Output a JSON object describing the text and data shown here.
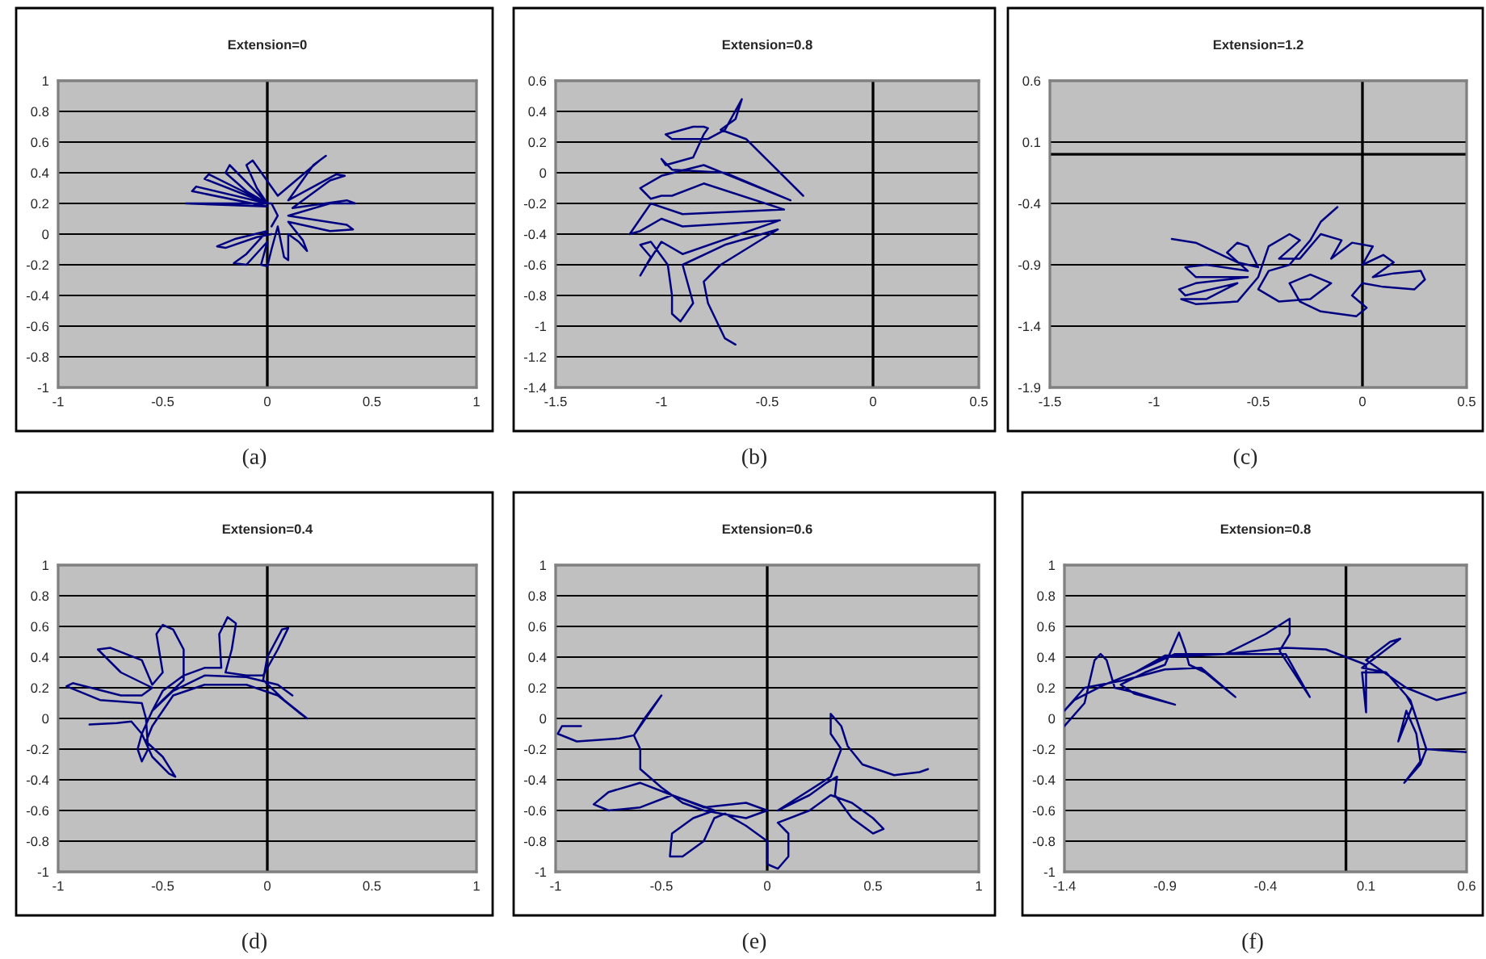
{
  "chart_data": [
    {
      "type": "line",
      "title": "Extension=0",
      "annotations": [
        "(a)"
      ],
      "xlim": [
        -1,
        1
      ],
      "ylim": [
        -1,
        1
      ],
      "xticks": [
        -1,
        -0.5,
        0,
        0.5,
        1
      ],
      "yticks": [
        -1,
        -0.8,
        -0.6,
        -0.4,
        -0.2,
        0,
        0.2,
        0.4,
        0.6,
        0.8,
        1
      ],
      "grid": "y",
      "ref_lines": [
        {
          "axis": "x",
          "value": 0
        }
      ],
      "series": [
        {
          "color": "#000080",
          "x": [
            0.02,
            -0.05,
            -0.2,
            -0.24,
            -0.15,
            0.0,
            -0.1,
            -0.16,
            -0.1,
            0.0,
            -0.03,
            0.0,
            0.02,
            0.05,
            0.08,
            0.1,
            0.1,
            0.15,
            0.19,
            0.17,
            0.1,
            0.3,
            0.41,
            0.38,
            0.1,
            0.3,
            0.42,
            0.38,
            0.12,
            0.3,
            0.37,
            0.33,
            0.1,
            0.22,
            0.28,
            0.25,
            0.05,
            -0.07,
            -0.1,
            -0.05,
            0.0,
            -0.18,
            -0.2,
            -0.1,
            0.0,
            -0.28,
            -0.3,
            0.0,
            -0.34,
            -0.36,
            0.0,
            -0.39,
            -0.36,
            0.02,
            0.05,
            0.02
          ],
          "values": [
            0.0,
            -0.02,
            -0.09,
            -0.08,
            -0.03,
            0.02,
            -0.13,
            -0.19,
            -0.2,
            -0.05,
            -0.2,
            -0.21,
            -0.1,
            0.05,
            -0.15,
            -0.17,
            0.0,
            -0.05,
            -0.11,
            -0.04,
            0.08,
            0.02,
            0.03,
            0.06,
            0.12,
            0.2,
            0.2,
            0.22,
            0.17,
            0.35,
            0.38,
            0.39,
            0.22,
            0.45,
            0.51,
            0.48,
            0.25,
            0.48,
            0.45,
            0.3,
            0.2,
            0.45,
            0.4,
            0.28,
            0.2,
            0.39,
            0.36,
            0.2,
            0.31,
            0.28,
            0.18,
            0.2,
            0.2,
            0.2,
            0.12,
            0.05
          ]
        }
      ]
    },
    {
      "type": "line",
      "title": "Extension=0.8",
      "annotations": [
        "(b)"
      ],
      "xlim": [
        -1.5,
        0.5
      ],
      "ylim": [
        -1.4,
        0.6
      ],
      "xticks": [
        -1.5,
        -1,
        -0.5,
        0,
        0.5
      ],
      "yticks": [
        -1.4,
        -1.2,
        -1,
        -0.8,
        -0.6,
        -0.4,
        -0.2,
        0,
        0.2,
        0.4,
        0.6
      ],
      "grid": "y",
      "ref_lines": [
        {
          "axis": "x",
          "value": 0
        }
      ],
      "series": [
        {
          "color": "#000080",
          "x": [
            -0.65,
            -0.7,
            -0.78,
            -0.8,
            -0.72,
            -0.45,
            -0.7,
            -0.9,
            -0.85,
            -0.91,
            -0.95,
            -0.95,
            -0.97,
            -1.05,
            -1.1,
            -1.05,
            -1.1,
            -1.07,
            -1.0,
            -0.9,
            -0.44,
            -0.9,
            -1.0,
            -1.1,
            -1.15,
            -1.1,
            -1.05,
            -0.9,
            -0.42,
            -0.8,
            -0.95,
            -1.0,
            -1.05,
            -1.1,
            -1.0,
            -0.8,
            -0.39,
            -0.7,
            -0.95,
            -1.0,
            -0.98,
            -0.85,
            -0.8,
            -0.78,
            -0.8,
            -0.85,
            -0.98,
            -0.95,
            -0.78,
            -0.7,
            -0.62,
            -0.65,
            -0.72,
            -0.6,
            -0.33
          ],
          "values": [
            -1.12,
            -1.08,
            -0.85,
            -0.71,
            -0.6,
            -0.37,
            -0.47,
            -0.6,
            -0.85,
            -0.97,
            -0.92,
            -0.8,
            -0.6,
            -0.45,
            -0.47,
            -0.55,
            -0.67,
            -0.6,
            -0.45,
            -0.53,
            -0.31,
            -0.35,
            -0.3,
            -0.38,
            -0.4,
            -0.3,
            -0.2,
            -0.27,
            -0.24,
            -0.07,
            -0.15,
            -0.15,
            -0.17,
            -0.1,
            -0.02,
            0.05,
            -0.18,
            0.0,
            0.02,
            0.09,
            0.05,
            0.1,
            0.25,
            0.29,
            0.3,
            0.3,
            0.25,
            0.22,
            0.22,
            0.28,
            0.48,
            0.35,
            0.28,
            0.22,
            -0.15
          ]
        }
      ]
    },
    {
      "type": "line",
      "title": "Extension=1.2",
      "annotations": [
        "(c)"
      ],
      "xlim": [
        -1.5,
        0.5
      ],
      "ylim": [
        -1.9,
        0.6
      ],
      "xticks": [
        -1.5,
        -1,
        -0.5,
        0,
        0.5
      ],
      "yticks": [
        -1.9,
        -1.4,
        -0.9,
        -0.4,
        0.1,
        0.6
      ],
      "grid": "y",
      "ref_lines": [
        {
          "axis": "x",
          "value": 0
        },
        {
          "axis": "y",
          "value": 0
        }
      ],
      "series": [
        {
          "color": "#000080",
          "x": [
            -0.915,
            -0.8,
            -0.7,
            -0.6,
            -0.5,
            -0.55,
            -0.6,
            -0.65,
            -0.55,
            -0.75,
            -0.85,
            -0.8,
            -0.55,
            -0.8,
            -0.88,
            -0.85,
            -0.6,
            -0.75,
            -0.87,
            -0.8,
            -0.6,
            -0.5,
            -0.45,
            -0.35,
            -0.3,
            -0.4,
            -0.3,
            -0.2,
            -0.1,
            -0.15,
            -0.05,
            0.05,
            0.0,
            0.1,
            0.15,
            0.05,
            0.15,
            0.28,
            0.3,
            0.25,
            0.1,
            0.0,
            -0.05,
            0.02,
            -0.03,
            -0.2,
            -0.3,
            -0.35,
            -0.25,
            -0.15,
            -0.25,
            -0.4,
            -0.5,
            -0.45,
            -0.35,
            -0.3,
            -0.25,
            -0.2,
            -0.12
          ],
          "values": [
            -0.69,
            -0.72,
            -0.8,
            -0.88,
            -0.92,
            -0.75,
            -0.72,
            -0.8,
            -0.95,
            -0.9,
            -0.92,
            -1.0,
            -1.0,
            -1.05,
            -1.1,
            -1.15,
            -1.05,
            -1.18,
            -1.18,
            -1.22,
            -1.2,
            -1.0,
            -0.75,
            -0.65,
            -0.7,
            -0.85,
            -0.85,
            -0.65,
            -0.7,
            -0.85,
            -0.72,
            -0.75,
            -0.9,
            -0.82,
            -0.88,
            -1.0,
            -0.97,
            -0.95,
            -1.02,
            -1.1,
            -1.08,
            -1.05,
            -1.15,
            -1.25,
            -1.32,
            -1.28,
            -1.2,
            -1.05,
            -0.98,
            -1.05,
            -1.18,
            -1.2,
            -1.1,
            -0.95,
            -0.9,
            -0.8,
            -0.7,
            -0.55,
            -0.43
          ]
        }
      ]
    },
    {
      "type": "line",
      "title": "Extension=0.4",
      "annotations": [
        "(d)"
      ],
      "xlim": [
        -1,
        1
      ],
      "ylim": [
        -1,
        1
      ],
      "xticks": [
        -1,
        -0.5,
        0,
        0.5,
        1
      ],
      "yticks": [
        -1,
        -0.8,
        -0.6,
        -0.4,
        -0.2,
        0,
        0.2,
        0.4,
        0.6,
        0.8,
        1
      ],
      "grid": "y",
      "ref_lines": [
        {
          "axis": "x",
          "value": 0
        }
      ],
      "series": [
        {
          "color": "#000080",
          "x": [
            -0.85,
            -0.72,
            -0.65,
            -0.6,
            -0.62,
            -0.6,
            -0.57,
            -0.58,
            -0.6,
            -0.8,
            -0.96,
            -0.93,
            -0.7,
            -0.6,
            -0.55,
            -0.7,
            -0.81,
            -0.75,
            -0.6,
            -0.55,
            -0.5,
            -0.53,
            -0.5,
            -0.45,
            -0.4,
            -0.4,
            -0.5,
            -0.55,
            -0.5,
            -0.4,
            -0.3,
            -0.22,
            -0.23,
            -0.19,
            -0.15,
            -0.17,
            -0.2,
            -0.1,
            -0.02,
            0.05,
            0.1,
            0.07,
            0.0,
            -0.02,
            0.08,
            0.19,
            0.15,
            0.05,
            -0.1,
            -0.3,
            -0.45,
            -0.55,
            -0.58,
            -0.5,
            -0.44,
            -0.47,
            -0.55,
            -0.6,
            -0.55,
            -0.45,
            -0.3,
            -0.1,
            0.05,
            0.12
          ],
          "values": [
            -0.04,
            -0.03,
            -0.02,
            -0.1,
            -0.2,
            -0.28,
            -0.2,
            0.0,
            0.1,
            0.12,
            0.21,
            0.23,
            0.15,
            0.15,
            0.2,
            0.3,
            0.45,
            0.46,
            0.38,
            0.22,
            0.3,
            0.55,
            0.61,
            0.58,
            0.45,
            0.25,
            0.12,
            0.05,
            0.18,
            0.28,
            0.33,
            0.33,
            0.55,
            0.66,
            0.62,
            0.45,
            0.3,
            0.28,
            0.28,
            0.45,
            0.59,
            0.58,
            0.4,
            0.25,
            0.12,
            0.0,
            0.04,
            0.15,
            0.22,
            0.22,
            0.15,
            -0.05,
            -0.15,
            -0.25,
            -0.38,
            -0.36,
            -0.25,
            -0.1,
            0.05,
            0.18,
            0.28,
            0.27,
            0.22,
            0.15
          ]
        }
      ]
    },
    {
      "type": "line",
      "title": "Extension=0.6",
      "annotations": [
        "(e)"
      ],
      "xlim": [
        -1,
        1
      ],
      "ylim": [
        -1,
        1
      ],
      "xticks": [
        -1,
        -0.5,
        0,
        0.5,
        1
      ],
      "yticks": [
        -1,
        -0.8,
        -0.6,
        -0.4,
        -0.2,
        0,
        0.2,
        0.4,
        0.6,
        0.8,
        1
      ],
      "grid": "y",
      "ref_lines": [
        {
          "axis": "x",
          "value": 0
        }
      ],
      "series": [
        {
          "color": "#000080",
          "x": [
            -0.88,
            -0.97,
            -0.99,
            -0.9,
            -0.7,
            -0.63,
            -0.6,
            -0.5,
            -0.58,
            -0.63,
            -0.6,
            -0.6,
            -0.5,
            -0.4,
            -0.3,
            -0.1,
            0.0,
            -0.1,
            -0.3,
            -0.45,
            -0.6,
            -0.75,
            -0.82,
            -0.75,
            -0.6,
            -0.45,
            -0.25,
            -0.35,
            -0.45,
            -0.46,
            -0.4,
            -0.3,
            -0.25,
            -0.2,
            -0.1,
            0.0,
            0.0,
            0.05,
            0.1,
            0.1,
            0.05,
            0.2,
            0.3,
            0.4,
            0.5,
            0.55,
            0.5,
            0.4,
            0.32,
            0.33,
            0.28,
            0.2,
            0.05,
            0.3,
            0.35,
            0.3,
            0.3,
            0.35,
            0.38,
            0.45,
            0.6,
            0.72,
            0.76
          ],
          "values": [
            -0.05,
            -0.05,
            -0.1,
            -0.15,
            -0.13,
            -0.11,
            -0.05,
            0.15,
            0.0,
            -0.11,
            -0.2,
            -0.33,
            -0.45,
            -0.55,
            -0.6,
            -0.65,
            -0.6,
            -0.55,
            -0.58,
            -0.5,
            -0.42,
            -0.48,
            -0.56,
            -0.6,
            -0.58,
            -0.5,
            -0.6,
            -0.65,
            -0.75,
            -0.9,
            -0.9,
            -0.8,
            -0.65,
            -0.62,
            -0.7,
            -0.8,
            -0.95,
            -0.98,
            -0.9,
            -0.75,
            -0.68,
            -0.6,
            -0.5,
            -0.55,
            -0.65,
            -0.72,
            -0.75,
            -0.65,
            -0.5,
            -0.38,
            -0.42,
            -0.5,
            -0.6,
            -0.38,
            -0.2,
            -0.1,
            0.03,
            -0.05,
            -0.18,
            -0.3,
            -0.37,
            -0.35,
            -0.33
          ]
        }
      ]
    },
    {
      "type": "line",
      "title": "Extension=0.8",
      "annotations": [
        "(f)"
      ],
      "xlim": [
        -1.4,
        0.6
      ],
      "ylim": [
        -1,
        1
      ],
      "xticks": [
        -1.4,
        -0.9,
        -0.4,
        0.1,
        0.6
      ],
      "yticks": [
        -1,
        -0.8,
        -0.6,
        -0.4,
        -0.2,
        0,
        0.2,
        0.4,
        0.6,
        0.8,
        1
      ],
      "grid": "y",
      "ref_lines": [
        {
          "axis": "x",
          "value": 0
        }
      ],
      "series": [
        {
          "color": "#000080",
          "x": [
            -1.4,
            -1.3,
            -1.25,
            -1.22,
            -1.19,
            -1.15,
            -1.05,
            -0.85,
            -1.05,
            -1.12,
            -1.0,
            -0.9,
            -0.83,
            -0.8,
            -0.78,
            -0.7,
            -0.55,
            -0.72,
            -0.9,
            -1.1,
            -1.3,
            -1.4,
            -1.35,
            -1.2,
            -1.05,
            -0.9,
            -0.6,
            -0.4,
            -0.28,
            -0.28,
            -0.33,
            -0.18,
            -0.3,
            -0.6,
            -0.85,
            -1.05,
            -0.9,
            -0.6,
            -0.3,
            -0.1,
            0.1,
            0.1,
            0.08,
            0.2,
            0.3,
            0.33,
            0.26,
            0.3,
            0.35,
            0.37,
            0.29,
            0.37,
            0.4,
            0.6,
            0.4,
            0.35,
            0.32,
            0.2,
            0.08,
            0.27,
            0.22,
            0.1,
            0.3,
            0.45,
            0.6
          ],
          "values": [
            -0.05,
            0.1,
            0.38,
            0.42,
            0.38,
            0.2,
            0.17,
            0.09,
            0.16,
            0.22,
            0.3,
            0.35,
            0.56,
            0.45,
            0.35,
            0.3,
            0.14,
            0.33,
            0.32,
            0.25,
            0.2,
            0.05,
            0.12,
            0.22,
            0.3,
            0.4,
            0.42,
            0.55,
            0.65,
            0.55,
            0.44,
            0.14,
            0.42,
            0.42,
            0.42,
            0.3,
            0.41,
            0.42,
            0.46,
            0.45,
            0.35,
            0.04,
            0.3,
            0.3,
            0.15,
            0.08,
            -0.15,
            0.05,
            -0.1,
            -0.28,
            -0.42,
            -0.3,
            -0.2,
            -0.22,
            -0.2,
            0.0,
            0.12,
            0.3,
            0.33,
            0.52,
            0.5,
            0.38,
            0.2,
            0.12,
            0.17
          ]
        }
      ]
    }
  ]
}
